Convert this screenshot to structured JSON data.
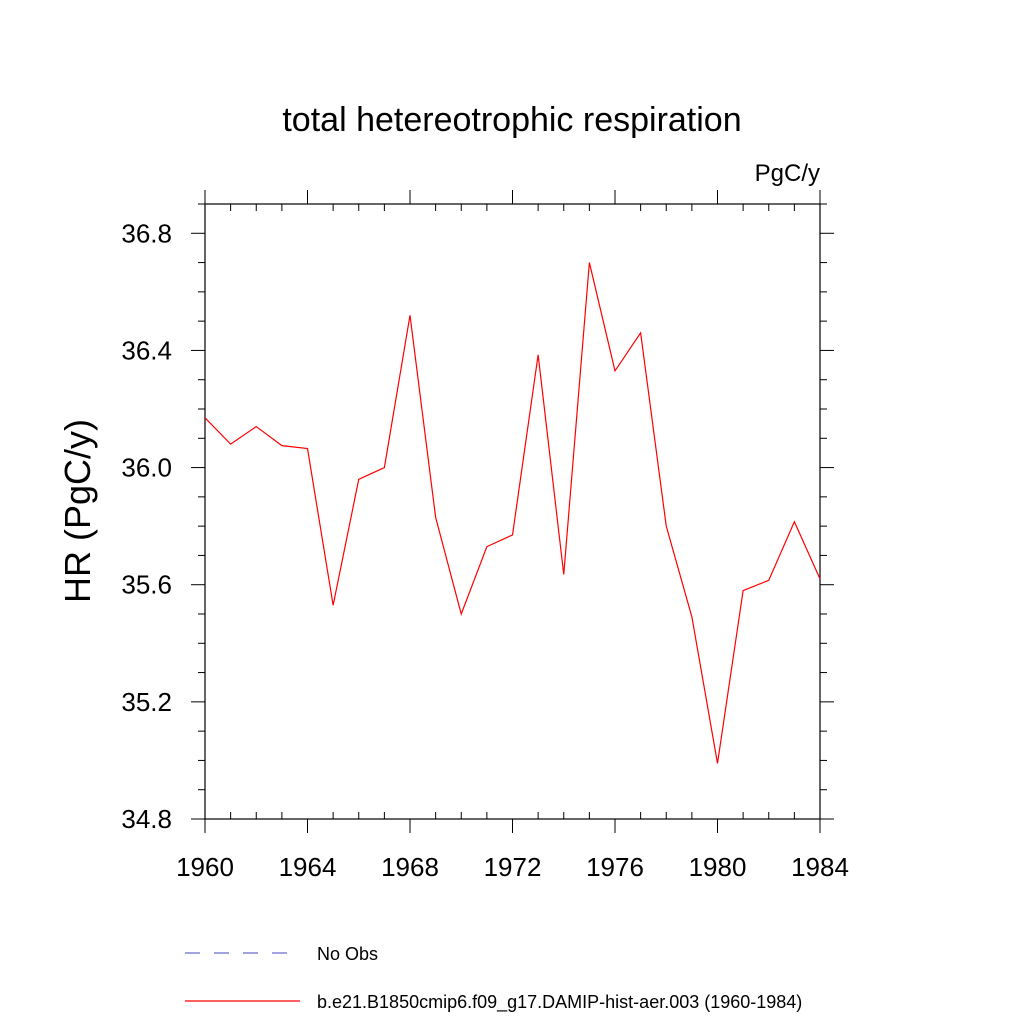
{
  "chart_data": {
    "type": "line",
    "title": "total hetereotrophic respiration",
    "units_label": "PgC/y",
    "ylabel": "HR  (PgC/y)",
    "xlim": [
      1960,
      1984
    ],
    "ylim": [
      34.8,
      36.9
    ],
    "x_ticks": [
      "1960",
      "1964",
      "1968",
      "1972",
      "1976",
      "1980",
      "1984"
    ],
    "y_ticks": [
      "34.8",
      "35.2",
      "35.6",
      "36.0",
      "36.4",
      "36.8"
    ],
    "series": [
      {
        "name": "b.e21.B1850cmip6.f09_g17.DAMIP-hist-aer.003 (1960-1984)",
        "color": "#ff0000",
        "style": "solid",
        "x": [
          1960,
          1961,
          1962,
          1963,
          1964,
          1965,
          1966,
          1967,
          1968,
          1969,
          1970,
          1971,
          1972,
          1973,
          1974,
          1975,
          1976,
          1977,
          1978,
          1979,
          1980,
          1981,
          1982,
          1983,
          1984
        ],
        "y": [
          36.17,
          36.08,
          36.14,
          36.075,
          36.065,
          35.53,
          35.96,
          36.0,
          36.52,
          35.83,
          35.5,
          35.73,
          35.77,
          36.385,
          35.635,
          36.7,
          36.33,
          36.46,
          35.8,
          35.49,
          34.99,
          35.58,
          35.615,
          35.815,
          35.62
        ]
      }
    ],
    "legend": {
      "placement": "bottom",
      "entries": [
        {
          "label": "No Obs",
          "color": "#6a6acd",
          "style": "dashed"
        },
        {
          "label": "b.e21.B1850cmip6.f09_g17.DAMIP-hist-aer.003 (1960-1984)",
          "color": "#ff0000",
          "style": "solid"
        }
      ]
    },
    "grid": false
  }
}
